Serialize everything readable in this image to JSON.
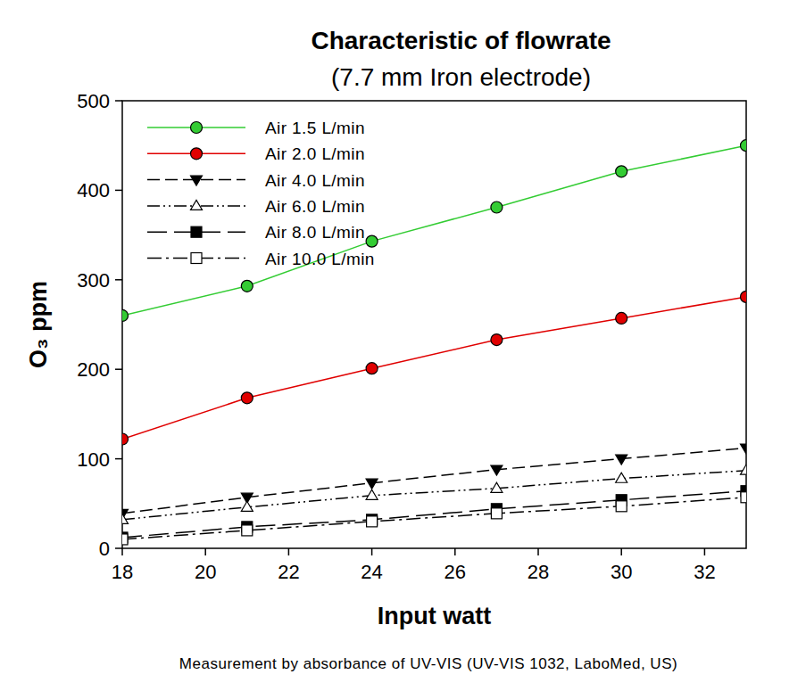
{
  "chart_data": {
    "type": "line",
    "title": "Characteristic of flowrate",
    "subtitle": "(7.7 mm Iron electrode)",
    "x_label": "Input watt",
    "y_label": "O₃ ppm",
    "annotation": "Measurement by absorbance of UV-VIS (UV-VIS 1032, LaboMed, US)",
    "x": [
      18,
      21,
      24,
      27,
      30,
      33
    ],
    "xlim": [
      18,
      33
    ],
    "xticks": [
      18,
      20,
      22,
      24,
      26,
      28,
      30,
      32
    ],
    "ylim": [
      0,
      500
    ],
    "yticks": [
      0,
      100,
      200,
      300,
      400,
      500
    ],
    "grid": false,
    "legend": "upper left",
    "series": [
      {
        "name": "Air 1.5 L/min",
        "color": "#33cc33",
        "marker": "circle",
        "line_style": "solid",
        "values": [
          260,
          293,
          343,
          381,
          421,
          450
        ]
      },
      {
        "name": "Air 2.0 L/min",
        "color": "#e00000",
        "marker": "circle",
        "line_style": "solid",
        "values": [
          122,
          168,
          201,
          233,
          257,
          281
        ]
      },
      {
        "name": "Air 4.0 L/min",
        "color": "#000000",
        "marker": "triangle-down",
        "line_style": "dashed",
        "values": [
          39,
          57,
          73,
          88,
          100,
          112
        ]
      },
      {
        "name": "Air 6.0 L/min",
        "color": "#000000",
        "marker": "triangle-up-open",
        "line_style": "dash-dot-dot",
        "values": [
          32,
          46,
          59,
          67,
          78,
          87
        ]
      },
      {
        "name": "Air 8.0 L/min",
        "color": "#000000",
        "marker": "square",
        "line_style": "long-dash",
        "values": [
          12,
          24,
          32,
          44,
          54,
          64
        ]
      },
      {
        "name": "Air 10.0 L/min",
        "color": "#000000",
        "marker": "square-open",
        "line_style": "dash-dot",
        "values": [
          10,
          20,
          30,
          39,
          47,
          57
        ]
      }
    ]
  }
}
